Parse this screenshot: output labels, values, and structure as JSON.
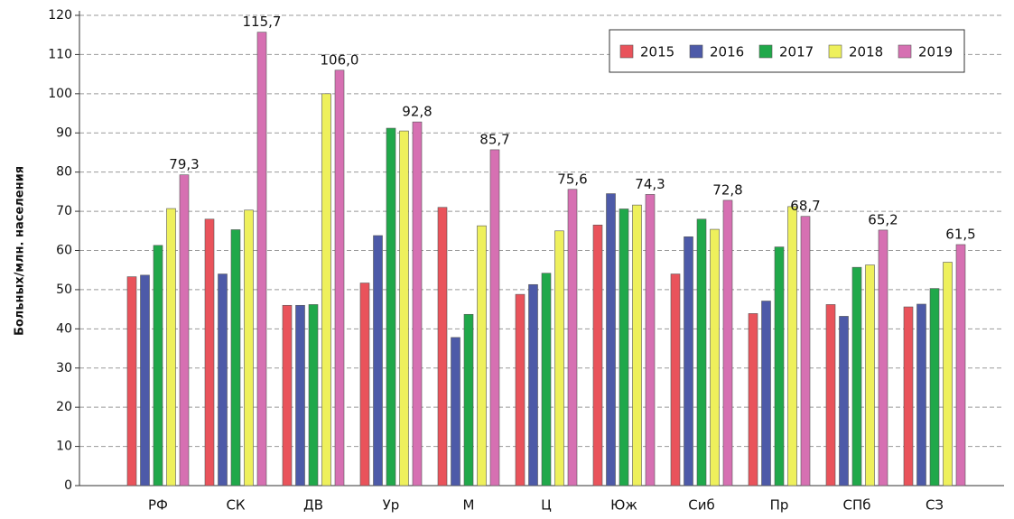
{
  "chart_data": {
    "type": "bar",
    "y_label": "Больных/млн. населения",
    "categories": [
      "РФ",
      "СК",
      "ДВ",
      "Ур",
      "М",
      "Ц",
      "Юж",
      "Сиб",
      "Пр",
      "СПб",
      "СЗ"
    ],
    "series": [
      {
        "name": "2015",
        "color": "#e9535b",
        "values": [
          53.3,
          68.0,
          46.0,
          51.7,
          71.0,
          48.8,
          66.5,
          54.0,
          43.9,
          46.2,
          45.6
        ]
      },
      {
        "name": "2016",
        "color": "#4d5aa8",
        "values": [
          53.7,
          54.0,
          46.0,
          63.8,
          37.8,
          51.3,
          74.5,
          63.5,
          47.1,
          43.2,
          46.3
        ]
      },
      {
        "name": "2017",
        "color": "#20a84a",
        "values": [
          61.3,
          65.3,
          46.2,
          91.2,
          43.7,
          54.2,
          70.6,
          68.0,
          60.9,
          55.7,
          50.3
        ]
      },
      {
        "name": "2018",
        "color": "#eef05c",
        "values": [
          70.7,
          70.3,
          100.0,
          90.5,
          66.3,
          65.0,
          71.6,
          65.4,
          71.2,
          56.3,
          57.0
        ]
      },
      {
        "name": "2019",
        "color": "#d670b2",
        "values": [
          79.3,
          115.7,
          106.0,
          92.8,
          85.7,
          75.6,
          74.3,
          72.8,
          68.7,
          65.2,
          61.5
        ],
        "value_labels": [
          "79,3",
          "115,7",
          "106,0",
          "92,8",
          "85,7",
          "75,6",
          "74,3",
          "72,8",
          "68,7",
          "65,2",
          "61,5"
        ]
      }
    ],
    "ylim": [
      0,
      120
    ],
    "yticks": [
      0,
      10,
      20,
      30,
      40,
      50,
      60,
      70,
      80,
      90,
      100,
      110,
      120
    ],
    "grid": true,
    "legend": "top-right"
  }
}
